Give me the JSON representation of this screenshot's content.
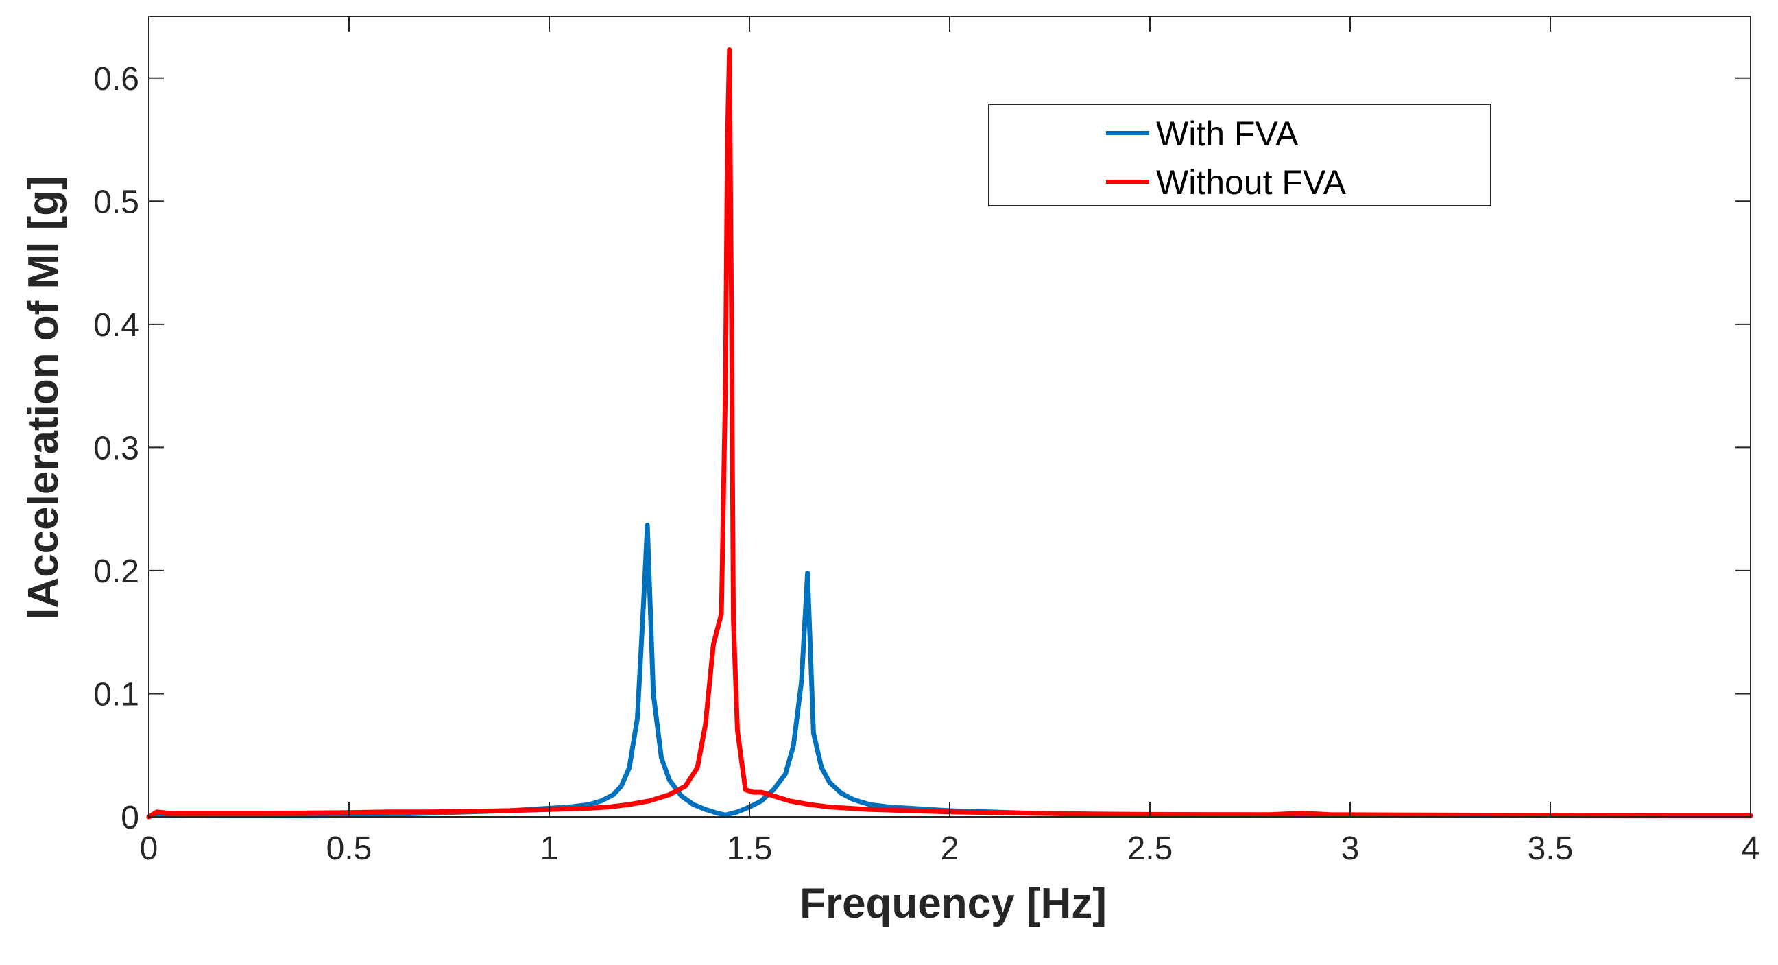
{
  "chart_data": {
    "type": "line",
    "title": "",
    "xlabel": "Frequency [Hz]",
    "ylabel": "lAcceleration of Ml [g]",
    "xlim": [
      0,
      4
    ],
    "ylim": [
      0,
      0.65
    ],
    "xticks": [
      0,
      0.5,
      1,
      1.5,
      2,
      2.5,
      3,
      3.5,
      4
    ],
    "xtick_labels": [
      "0",
      "0.5",
      "1",
      "1.5",
      "2",
      "2.5",
      "3",
      "3.5",
      "4"
    ],
    "yticks": [
      0,
      0.1,
      0.2,
      0.3,
      0.4,
      0.5,
      0.6
    ],
    "ytick_labels": [
      "0",
      "0.1",
      "0.2",
      "0.3",
      "0.4",
      "0.5",
      "0.6"
    ],
    "grid": false,
    "legend_position": "top-right",
    "series": [
      {
        "name": "With FVA",
        "color": "#0072BD",
        "x": [
          0,
          0.02,
          0.05,
          0.1,
          0.2,
          0.3,
          0.4,
          0.5,
          0.6,
          0.7,
          0.8,
          0.9,
          1.0,
          1.05,
          1.1,
          1.13,
          1.16,
          1.18,
          1.2,
          1.22,
          1.235,
          1.245,
          1.26,
          1.28,
          1.3,
          1.33,
          1.36,
          1.39,
          1.42,
          1.44,
          1.47,
          1.5,
          1.53,
          1.56,
          1.59,
          1.61,
          1.63,
          1.645,
          1.66,
          1.68,
          1.7,
          1.73,
          1.76,
          1.8,
          1.85,
          1.9,
          2.0,
          2.1,
          2.2,
          2.3,
          2.5,
          2.7,
          2.9,
          3.0,
          3.2,
          3.4,
          3.6,
          3.8,
          4.0
        ],
        "values": [
          0,
          0.002,
          0.001,
          0.0015,
          0.001,
          0.001,
          0.0008,
          0.0015,
          0.002,
          0.003,
          0.004,
          0.005,
          0.007,
          0.008,
          0.01,
          0.013,
          0.018,
          0.025,
          0.04,
          0.08,
          0.17,
          0.237,
          0.1,
          0.048,
          0.03,
          0.017,
          0.01,
          0.006,
          0.003,
          0.0015,
          0.004,
          0.008,
          0.013,
          0.022,
          0.035,
          0.058,
          0.11,
          0.198,
          0.068,
          0.04,
          0.028,
          0.019,
          0.014,
          0.01,
          0.008,
          0.007,
          0.005,
          0.004,
          0.003,
          0.0025,
          0.002,
          0.0018,
          0.0015,
          0.0015,
          0.0012,
          0.0012,
          0.001,
          0.001,
          0.001
        ]
      },
      {
        "name": "Without FVA",
        "color": "#FF0000",
        "x": [
          0,
          0.02,
          0.05,
          0.1,
          0.2,
          0.3,
          0.4,
          0.5,
          0.6,
          0.7,
          0.8,
          0.9,
          1.0,
          1.1,
          1.15,
          1.2,
          1.25,
          1.3,
          1.34,
          1.37,
          1.39,
          1.41,
          1.43,
          1.44,
          1.445,
          1.45,
          1.455,
          1.46,
          1.47,
          1.49,
          1.51,
          1.53,
          1.56,
          1.6,
          1.65,
          1.7,
          1.8,
          1.9,
          2.0,
          2.2,
          2.4,
          2.6,
          2.8,
          2.88,
          2.95,
          3.2,
          3.5,
          3.8,
          4.0
        ],
        "values": [
          0,
          0.004,
          0.003,
          0.003,
          0.003,
          0.003,
          0.0032,
          0.0035,
          0.004,
          0.004,
          0.0045,
          0.005,
          0.006,
          0.007,
          0.008,
          0.01,
          0.013,
          0.018,
          0.025,
          0.04,
          0.075,
          0.14,
          0.165,
          0.35,
          0.55,
          0.623,
          0.42,
          0.16,
          0.07,
          0.022,
          0.02,
          0.02,
          0.017,
          0.013,
          0.01,
          0.008,
          0.006,
          0.005,
          0.004,
          0.003,
          0.002,
          0.0018,
          0.0018,
          0.003,
          0.0018,
          0.0015,
          0.0012,
          0.001,
          0.001
        ]
      }
    ]
  }
}
